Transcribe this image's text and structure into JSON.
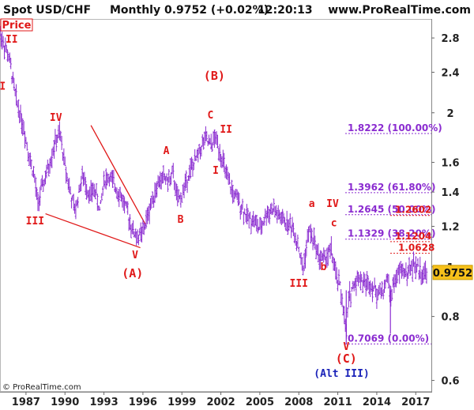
{
  "header": {
    "title": "Spot USD/CHF",
    "period": "Monthly",
    "last_value": "0.9752 (+0.02%)",
    "time": "12:20:13",
    "site": "www.ProRealTime.com"
  },
  "footer": {
    "copyright": "© ProRealTime.com"
  },
  "colors": {
    "price_bars": "#8a2bd0",
    "wave_labels": "#e01818",
    "alt_label": "#1a22b8",
    "fib_lines": "#8a2bd0",
    "trend_lines": "#e01818",
    "price_box": "#f7c11b"
  },
  "chart_data": {
    "type": "bar",
    "price_label": "Price",
    "x_axis": {
      "ticks": [
        "1987",
        "1990",
        "1993",
        "1996",
        "1999",
        "2002",
        "2005",
        "2008",
        "2011",
        "2014",
        "2017"
      ],
      "range": [
        1985,
        2018.2
      ]
    },
    "y_axis": {
      "scale": "log",
      "position": "right",
      "ticks": [
        "2.8",
        "2.4",
        "2",
        "1.6",
        "1.4",
        "1.2",
        "1",
        "0.8",
        "0.6"
      ],
      "range": [
        0.57,
        3.05
      ]
    },
    "current_price": "0.9752",
    "series": [
      {
        "points": [
          [
            1985.0,
            2.86
          ],
          [
            1985.7,
            2.55
          ],
          [
            1986.2,
            2.15
          ],
          [
            1986.8,
            1.88
          ],
          [
            1987.3,
            1.62
          ],
          [
            1987.6,
            1.52
          ],
          [
            1987.9,
            1.33
          ],
          [
            1988.4,
            1.47
          ],
          [
            1988.8,
            1.58
          ],
          [
            1989.2,
            1.74
          ],
          [
            1989.6,
            1.82
          ],
          [
            1990.0,
            1.58
          ],
          [
            1990.5,
            1.36
          ],
          [
            1990.8,
            1.28
          ],
          [
            1991.3,
            1.5
          ],
          [
            1991.6,
            1.45
          ],
          [
            1991.9,
            1.38
          ],
          [
            1992.3,
            1.42
          ],
          [
            1992.7,
            1.28
          ],
          [
            1993.0,
            1.48
          ],
          [
            1993.4,
            1.5
          ],
          [
            1994.0,
            1.42
          ],
          [
            1994.4,
            1.36
          ],
          [
            1994.8,
            1.28
          ],
          [
            1995.2,
            1.18
          ],
          [
            1995.6,
            1.14
          ],
          [
            1996.0,
            1.17
          ],
          [
            1996.3,
            1.24
          ],
          [
            1996.8,
            1.38
          ],
          [
            1997.2,
            1.46
          ],
          [
            1997.6,
            1.5
          ],
          [
            1998.0,
            1.47
          ],
          [
            1998.3,
            1.52
          ],
          [
            1998.7,
            1.34
          ],
          [
            1999.0,
            1.38
          ],
          [
            1999.5,
            1.52
          ],
          [
            2000.0,
            1.6
          ],
          [
            2000.4,
            1.7
          ],
          [
            2000.8,
            1.78
          ],
          [
            2001.2,
            1.72
          ],
          [
            2001.6,
            1.79
          ],
          [
            2002.0,
            1.66
          ],
          [
            2002.5,
            1.48
          ],
          [
            2003.0,
            1.38
          ],
          [
            2003.5,
            1.33
          ],
          [
            2004.0,
            1.25
          ],
          [
            2004.5,
            1.24
          ],
          [
            2005.0,
            1.18
          ],
          [
            2005.5,
            1.27
          ],
          [
            2006.0,
            1.3
          ],
          [
            2006.5,
            1.25
          ],
          [
            2007.0,
            1.22
          ],
          [
            2007.5,
            1.2
          ],
          [
            2008.0,
            1.09
          ],
          [
            2008.3,
            0.98
          ],
          [
            2008.8,
            1.18
          ],
          [
            2009.2,
            1.12
          ],
          [
            2009.6,
            1.04
          ],
          [
            2010.0,
            1.04
          ],
          [
            2010.5,
            1.08
          ],
          [
            2010.8,
            0.97
          ],
          [
            2011.2,
            0.91
          ],
          [
            2011.5,
            0.8
          ],
          [
            2011.65,
            0.72
          ],
          [
            2011.8,
            0.86
          ],
          [
            2012.2,
            0.92
          ],
          [
            2012.6,
            0.96
          ],
          [
            2013.0,
            0.93
          ],
          [
            2013.5,
            0.93
          ],
          [
            2014.0,
            0.89
          ],
          [
            2014.5,
            0.9
          ],
          [
            2014.9,
            0.96
          ],
          [
            2015.0,
            0.87
          ],
          [
            2015.4,
            0.94
          ],
          [
            2015.9,
            0.99
          ],
          [
            2016.3,
            0.97
          ],
          [
            2016.8,
            1.01
          ],
          [
            2017.2,
            0.99
          ],
          [
            2017.6,
            0.97
          ],
          [
            2017.9,
            0.975
          ]
        ]
      }
    ],
    "fib_levels": [
      {
        "value": 1.8222,
        "label": "1.8222 (100.00%)"
      },
      {
        "value": 1.3962,
        "label": "1.3962 (61.80%)"
      },
      {
        "value": 1.2645,
        "label": "1.2645 (50.00%)"
      },
      {
        "value": 1.1329,
        "label": "1.1329 (38.20%)"
      },
      {
        "value": 0.7069,
        "label": "0.7069 (0.00%)"
      }
    ],
    "extra_levels": [
      {
        "value": 1.2602,
        "label": "1.2602",
        "color": "#e01818"
      },
      {
        "value": 1.1204,
        "label": "1.1204",
        "color": "#e01818"
      },
      {
        "value": 1.0628,
        "label": "1.0628",
        "color": "#e01818"
      }
    ],
    "wave_labels": [
      {
        "text": "II",
        "x": 1985.9,
        "y": 2.74
      },
      {
        "text": "I",
        "x": 1985.2,
        "y": 2.22
      },
      {
        "text": "IV",
        "x": 1989.3,
        "y": 1.93
      },
      {
        "text": "III",
        "x": 1987.7,
        "y": 1.21
      },
      {
        "text": "V",
        "x": 1995.4,
        "y": 1.04
      },
      {
        "text": "(A)",
        "x": 1995.2,
        "y": 0.955,
        "big": true
      },
      {
        "text": "A",
        "x": 1997.8,
        "y": 1.66
      },
      {
        "text": "B",
        "x": 1998.9,
        "y": 1.22
      },
      {
        "text": "(B)",
        "x": 2001.5,
        "y": 2.32,
        "big": true
      },
      {
        "text": "C",
        "x": 2001.2,
        "y": 1.95
      },
      {
        "text": "II",
        "x": 2002.4,
        "y": 1.83
      },
      {
        "text": "I",
        "x": 2001.6,
        "y": 1.52
      },
      {
        "text": "a",
        "x": 2009.0,
        "y": 1.31
      },
      {
        "text": "IV",
        "x": 2010.6,
        "y": 1.31
      },
      {
        "text": "c",
        "x": 2010.7,
        "y": 1.2
      },
      {
        "text": "b",
        "x": 2009.9,
        "y": 0.985
      },
      {
        "text": "III",
        "x": 2008.0,
        "y": 0.915
      },
      {
        "text": "V",
        "x": 2011.65,
        "y": 0.688
      },
      {
        "text": "(C)",
        "x": 2011.65,
        "y": 0.65,
        "big": true
      },
      {
        "text": "(Alt III)",
        "x": 2011.3,
        "y": 0.61,
        "color": "blue"
      }
    ],
    "trend_lines": [
      {
        "from": [
          1992.0,
          1.89
        ],
        "to": [
          1996.2,
          1.21
        ]
      },
      {
        "from": [
          1988.5,
          1.27
        ],
        "to": [
          1995.8,
          1.09
        ]
      }
    ]
  }
}
